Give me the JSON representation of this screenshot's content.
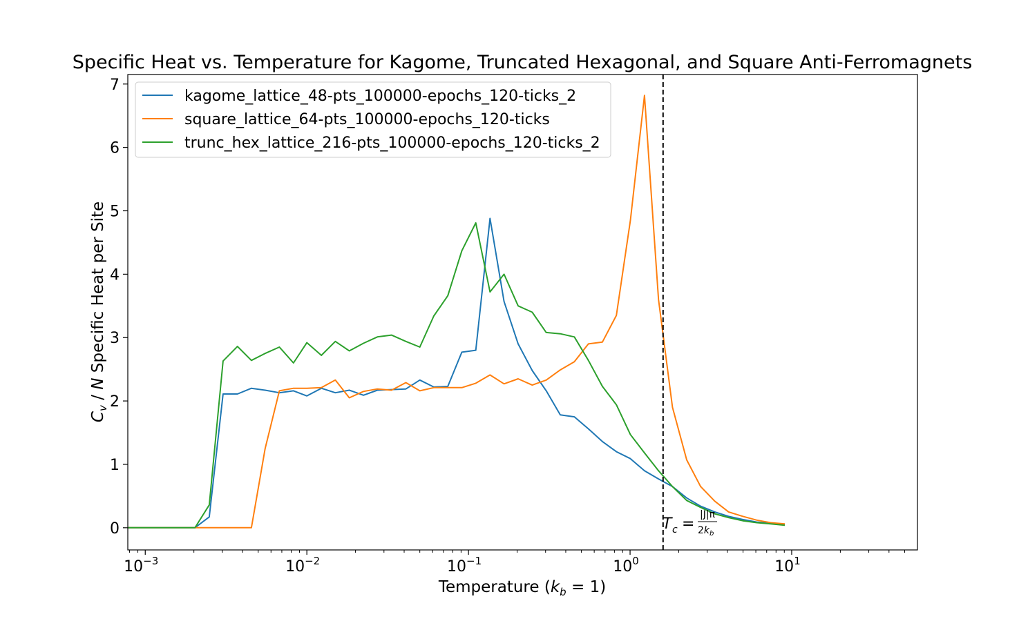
{
  "chart_data": {
    "type": "line",
    "title": "Specific Heat vs. Temperature for Kagome, Truncated Hexagonal, and Square Anti-Ferromagnets",
    "xlabel": "Temperature (k_b = 1)",
    "ylabel": "C_v / N Specific Heat per Site",
    "xscale": "log",
    "xlim": [
      0.00078,
      60
    ],
    "ylim": [
      -0.35,
      7.15
    ],
    "xticks": [
      {
        "value": 0.001,
        "label": "10",
        "exp": "−3"
      },
      {
        "value": 0.01,
        "label": "10",
        "exp": "−2"
      },
      {
        "value": 0.1,
        "label": "10",
        "exp": "−1"
      },
      {
        "value": 1,
        "label": "10",
        "exp": "0"
      },
      {
        "value": 10,
        "label": "10",
        "exp": "1"
      }
    ],
    "yticks": [
      {
        "value": 0,
        "label": "0"
      },
      {
        "value": 1,
        "label": "1"
      },
      {
        "value": 2,
        "label": "2"
      },
      {
        "value": 3,
        "label": "3"
      },
      {
        "value": 4,
        "label": "4"
      },
      {
        "value": 5,
        "label": "5"
      },
      {
        "value": 6,
        "label": "6"
      },
      {
        "value": 7,
        "label": "7"
      }
    ],
    "legend_position": "top-left",
    "grid": false,
    "critical_line": {
      "x": 1.6,
      "style": "dashed",
      "color": "#000000",
      "label": "T_c = |J|π / 2k_b"
    },
    "series": [
      {
        "name": "kagome_lattice_48-pts_100000-epochs_120-ticks_2",
        "color": "#1f77b4",
        "points": [
          [
            0.00078,
            0
          ],
          [
            0.00102,
            0
          ],
          [
            0.00203,
            0
          ],
          [
            0.00249,
            0.17
          ],
          [
            0.00303,
            2.11
          ],
          [
            0.00372,
            2.11
          ],
          [
            0.00454,
            2.2
          ],
          [
            0.00552,
            2.17
          ],
          [
            0.00676,
            2.13
          ],
          [
            0.00826,
            2.16
          ],
          [
            0.01,
            2.08
          ],
          [
            0.0123,
            2.2
          ],
          [
            0.015,
            2.13
          ],
          [
            0.0183,
            2.17
          ],
          [
            0.0224,
            2.09
          ],
          [
            0.0273,
            2.17
          ],
          [
            0.0334,
            2.18
          ],
          [
            0.041,
            2.19
          ],
          [
            0.05,
            2.33
          ],
          [
            0.061,
            2.22
          ],
          [
            0.0745,
            2.23
          ],
          [
            0.091,
            2.77
          ],
          [
            0.111,
            2.8
          ],
          [
            0.136,
            4.88
          ],
          [
            0.166,
            3.57
          ],
          [
            0.203,
            2.9
          ],
          [
            0.248,
            2.48
          ],
          [
            0.303,
            2.16
          ],
          [
            0.37,
            1.78
          ],
          [
            0.452,
            1.75
          ],
          [
            0.552,
            1.56
          ],
          [
            0.674,
            1.36
          ],
          [
            0.823,
            1.2
          ],
          [
            1.005,
            1.09
          ],
          [
            1.228,
            0.9
          ],
          [
            1.5,
            0.77
          ],
          [
            1.83,
            0.65
          ],
          [
            2.24,
            0.47
          ],
          [
            2.73,
            0.34
          ],
          [
            3.34,
            0.25
          ],
          [
            4.07,
            0.18
          ],
          [
            4.98,
            0.13
          ],
          [
            6.08,
            0.09
          ],
          [
            7.42,
            0.07
          ],
          [
            9.07,
            0.05
          ]
        ]
      },
      {
        "name": "square_lattice_64-pts_100000-epochs_120-ticks",
        "color": "#ff7f0e",
        "points": [
          [
            0.00078,
            0
          ],
          [
            0.00102,
            0
          ],
          [
            0.00203,
            0
          ],
          [
            0.00454,
            0
          ],
          [
            0.00552,
            1.25
          ],
          [
            0.00676,
            2.16
          ],
          [
            0.00826,
            2.2
          ],
          [
            0.01,
            2.2
          ],
          [
            0.0123,
            2.21
          ],
          [
            0.015,
            2.33
          ],
          [
            0.0183,
            2.05
          ],
          [
            0.0224,
            2.15
          ],
          [
            0.0273,
            2.19
          ],
          [
            0.0334,
            2.17
          ],
          [
            0.041,
            2.29
          ],
          [
            0.05,
            2.16
          ],
          [
            0.061,
            2.21
          ],
          [
            0.0745,
            2.21
          ],
          [
            0.091,
            2.21
          ],
          [
            0.111,
            2.28
          ],
          [
            0.136,
            2.41
          ],
          [
            0.166,
            2.27
          ],
          [
            0.203,
            2.35
          ],
          [
            0.248,
            2.25
          ],
          [
            0.303,
            2.33
          ],
          [
            0.37,
            2.49
          ],
          [
            0.452,
            2.62
          ],
          [
            0.552,
            2.9
          ],
          [
            0.674,
            2.93
          ],
          [
            0.823,
            3.35
          ],
          [
            1.005,
            4.85
          ],
          [
            1.228,
            6.82
          ],
          [
            1.5,
            3.6
          ],
          [
            1.83,
            1.9
          ],
          [
            2.24,
            1.07
          ],
          [
            2.73,
            0.65
          ],
          [
            3.34,
            0.42
          ],
          [
            4.07,
            0.25
          ],
          [
            4.98,
            0.18
          ],
          [
            6.08,
            0.12
          ],
          [
            7.42,
            0.08
          ],
          [
            9.07,
            0.06
          ]
        ]
      },
      {
        "name": "trunc_hex_lattice_216-pts_100000-epochs_120-ticks_2",
        "color": "#2ca02c",
        "points": [
          [
            0.00078,
            0
          ],
          [
            0.00102,
            0
          ],
          [
            0.00203,
            0
          ],
          [
            0.00249,
            0.36
          ],
          [
            0.00303,
            2.63
          ],
          [
            0.00372,
            2.86
          ],
          [
            0.00454,
            2.64
          ],
          [
            0.00552,
            2.75
          ],
          [
            0.00676,
            2.85
          ],
          [
            0.00826,
            2.6
          ],
          [
            0.01,
            2.92
          ],
          [
            0.0123,
            2.72
          ],
          [
            0.015,
            2.94
          ],
          [
            0.0183,
            2.79
          ],
          [
            0.0224,
            2.91
          ],
          [
            0.0273,
            3.01
          ],
          [
            0.0334,
            3.04
          ],
          [
            0.041,
            2.94
          ],
          [
            0.05,
            2.85
          ],
          [
            0.061,
            3.34
          ],
          [
            0.0745,
            3.66
          ],
          [
            0.091,
            4.37
          ],
          [
            0.111,
            4.81
          ],
          [
            0.136,
            3.72
          ],
          [
            0.166,
            4.0
          ],
          [
            0.203,
            3.5
          ],
          [
            0.248,
            3.4
          ],
          [
            0.303,
            3.08
          ],
          [
            0.37,
            3.06
          ],
          [
            0.452,
            3.01
          ],
          [
            0.552,
            2.64
          ],
          [
            0.674,
            2.23
          ],
          [
            0.823,
            1.94
          ],
          [
            1.005,
            1.47
          ],
          [
            1.228,
            1.18
          ],
          [
            1.5,
            0.9
          ],
          [
            1.83,
            0.65
          ],
          [
            2.24,
            0.43
          ],
          [
            2.73,
            0.32
          ],
          [
            3.34,
            0.22
          ],
          [
            4.07,
            0.16
          ],
          [
            4.98,
            0.11
          ],
          [
            6.08,
            0.08
          ],
          [
            7.42,
            0.06
          ],
          [
            9.07,
            0.04
          ]
        ]
      }
    ]
  }
}
